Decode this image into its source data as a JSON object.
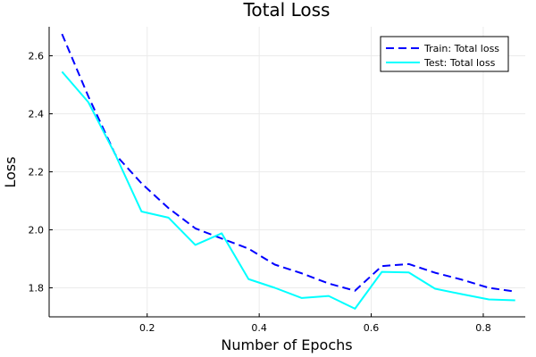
{
  "chart_data": {
    "type": "line",
    "title": "Total Loss",
    "xlabel": "Number of Epochs",
    "ylabel": "Loss",
    "xlim": [
      0.025,
      0.875
    ],
    "ylim": [
      1.7,
      2.7
    ],
    "xticks": [
      0.2,
      0.4,
      0.6,
      0.8
    ],
    "xtick_labels": [
      "0.2",
      "0.4",
      "0.6",
      "0.8"
    ],
    "yticks": [
      1.8,
      2.0,
      2.2,
      2.4,
      2.6
    ],
    "ytick_labels": [
      "1.8",
      "2.0",
      "2.2",
      "2.4",
      "2.6"
    ],
    "grid": true,
    "legend_position": "top-right",
    "series": [
      {
        "name": "Train: Total loss",
        "color": "#0000ff",
        "dash": "dashed",
        "x": [
          0.048,
          0.095,
          0.143,
          0.19,
          0.238,
          0.286,
          0.333,
          0.381,
          0.428,
          0.476,
          0.524,
          0.571,
          0.619,
          0.667,
          0.714,
          0.762,
          0.81,
          0.857
        ],
        "y": [
          2.675,
          2.46,
          2.26,
          2.16,
          2.075,
          2.005,
          1.97,
          1.935,
          1.88,
          1.85,
          1.815,
          1.79,
          1.875,
          1.882,
          1.852,
          1.828,
          1.8,
          1.787
        ]
      },
      {
        "name": "Test: Total loss",
        "color": "#00ffff",
        "dash": "solid",
        "x": [
          0.048,
          0.095,
          0.143,
          0.19,
          0.238,
          0.286,
          0.333,
          0.381,
          0.428,
          0.476,
          0.524,
          0.571,
          0.619,
          0.667,
          0.714,
          0.762,
          0.81,
          0.857
        ],
        "y": [
          2.545,
          2.44,
          2.26,
          2.063,
          2.042,
          1.948,
          1.988,
          1.83,
          1.8,
          1.765,
          1.772,
          1.728,
          1.855,
          1.853,
          1.797,
          1.778,
          1.76,
          1.757
        ]
      }
    ]
  }
}
